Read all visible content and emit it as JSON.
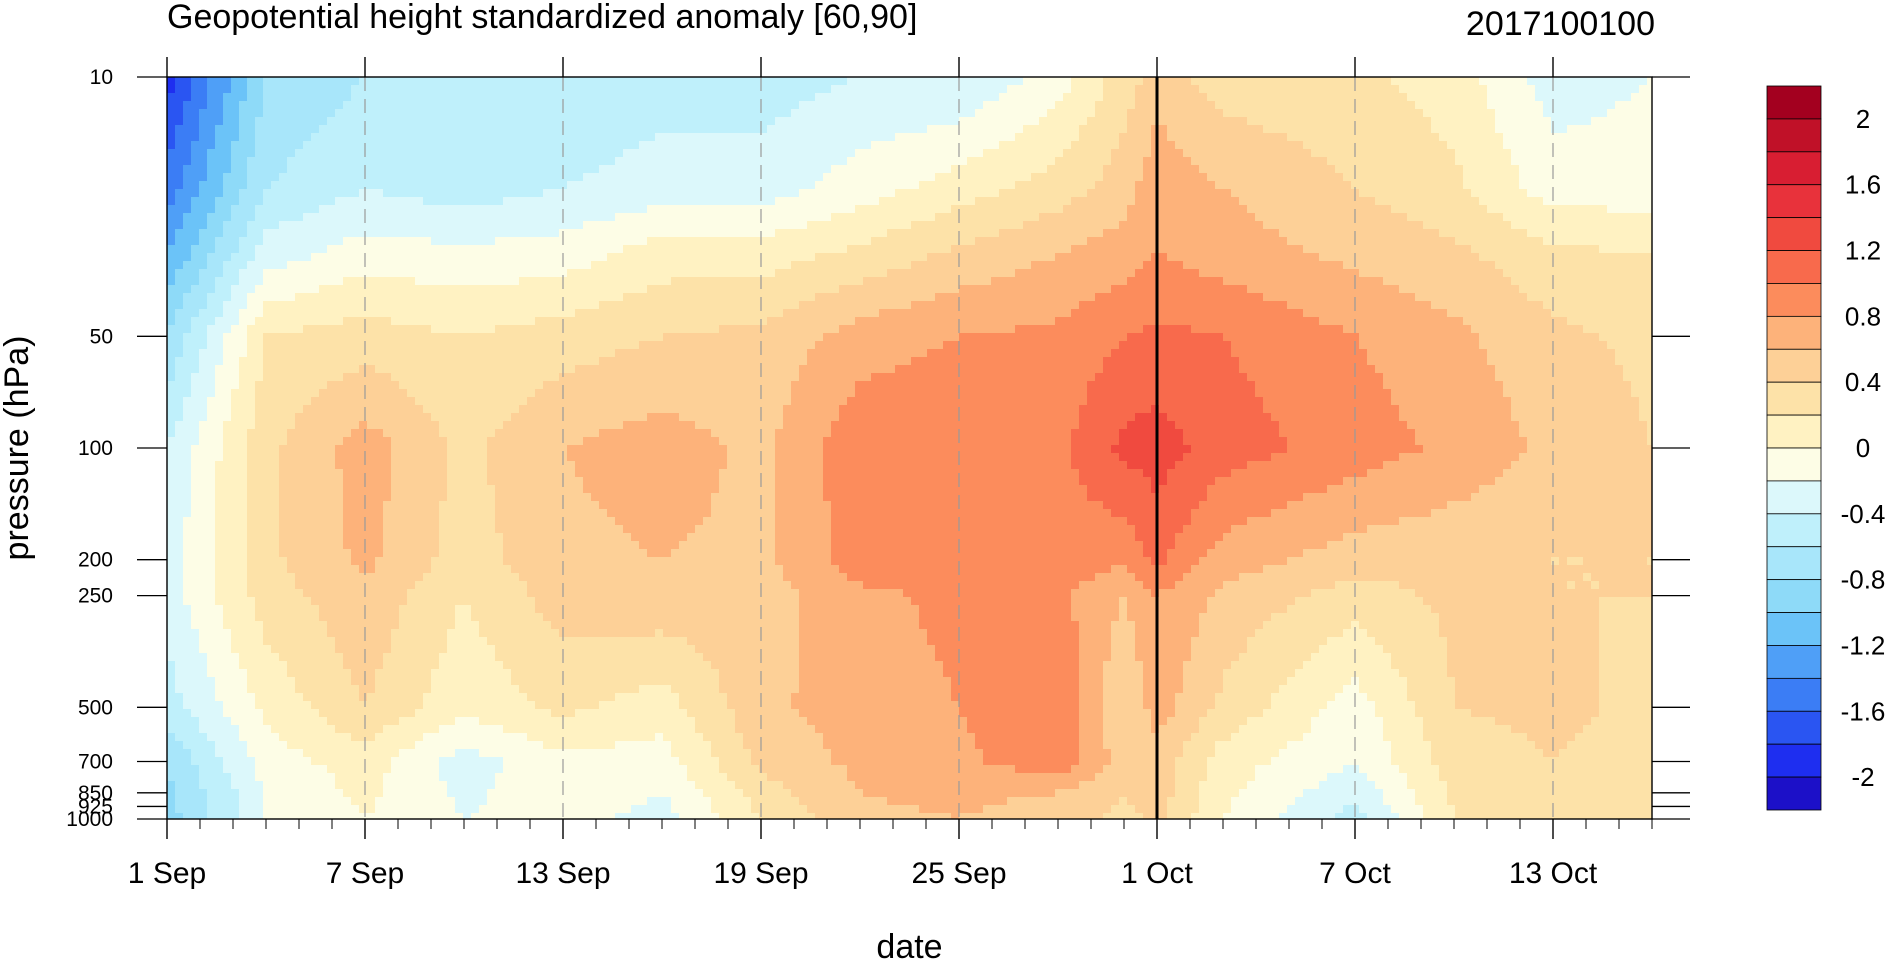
{
  "chart_data": {
    "type": "heatmap",
    "title": "Geopotential height standardized anomaly [60,90]",
    "date_stamp": "2017100100",
    "xlabel": "date",
    "ylabel": "pressure (hPa)",
    "x_tick_labels": [
      {
        "date": "2017-09-01",
        "label": "1 Sep"
      },
      {
        "date": "2017-09-07",
        "label": "7 Sep"
      },
      {
        "date": "2017-09-13",
        "label": "13 Sep"
      },
      {
        "date": "2017-09-19",
        "label": "19 Sep"
      },
      {
        "date": "2017-09-25",
        "label": "25 Sep"
      },
      {
        "date": "2017-10-01",
        "label": "1 Oct"
      },
      {
        "date": "2017-10-07",
        "label": "7 Oct"
      },
      {
        "date": "2017-10-13",
        "label": "13 Oct"
      }
    ],
    "xlim": [
      "2017-09-01",
      "2017-10-16"
    ],
    "minor_tick_days": 1,
    "vertical_marker_date": "2017-10-01",
    "y_scale": "log",
    "ylim": [
      1000,
      10
    ],
    "y_tick_labels": [
      {
        "value": 10,
        "label": "10"
      },
      {
        "value": 50,
        "label": "50"
      },
      {
        "value": 100,
        "label": "100"
      },
      {
        "value": 200,
        "label": "200"
      },
      {
        "value": 250,
        "label": "250"
      },
      {
        "value": 500,
        "label": "500"
      },
      {
        "value": 700,
        "label": "700"
      },
      {
        "value": 850,
        "label": "850"
      },
      {
        "value": 925,
        "label": "925"
      },
      {
        "value": 1000,
        "label": "1000"
      }
    ],
    "colorbar": {
      "levels": [
        -2.2,
        -2.0,
        -1.8,
        -1.6,
        -1.4,
        -1.2,
        -1.0,
        -0.8,
        -0.6,
        -0.4,
        -0.2,
        0,
        0.2,
        0.4,
        0.6,
        0.8,
        1.0,
        1.2,
        1.4,
        1.6,
        1.8,
        2.0,
        2.2
      ],
      "colors": [
        "#1c10c8",
        "#1e2ef0",
        "#2a55f2",
        "#3b7df5",
        "#4f9ff7",
        "#6bc3f8",
        "#8edaf8",
        "#a8e6fa",
        "#bff0fb",
        "#dcf8fb",
        "#fdfde6",
        "#fff2c2",
        "#fde2a8",
        "#fdd097",
        "#fdb27a",
        "#fc8c5c",
        "#f86a4c",
        "#f04a3f",
        "#e8323b",
        "#d81e32",
        "#c01128",
        "#a3001f"
      ],
      "labels": [
        "2",
        "1.6",
        "1.2",
        "0.8",
        "0.4",
        "0",
        "-0.4",
        "-0.8",
        "-1.2",
        "-1.6",
        "-2"
      ],
      "label_levels": [
        2.0,
        1.6,
        1.2,
        0.8,
        0.4,
        0.0,
        -0.4,
        -0.8,
        -1.2,
        -1.6,
        -2.0
      ]
    },
    "anomaly_grid": {
      "dates": [
        "2017-09-01",
        "2017-09-04",
        "2017-09-07",
        "2017-09-10",
        "2017-09-13",
        "2017-09-16",
        "2017-09-19",
        "2017-09-22",
        "2017-09-25",
        "2017-09-28",
        "2017-09-30",
        "2017-10-01",
        "2017-10-03",
        "2017-10-07",
        "2017-10-10",
        "2017-10-13",
        "2017-10-16"
      ],
      "pressure": [
        10,
        20,
        30,
        50,
        100,
        200,
        250,
        500,
        700,
        850,
        1000
      ],
      "values": [
        [
          -1.9,
          -0.8,
          -0.6,
          -0.6,
          -0.6,
          -0.5,
          -0.5,
          -0.4,
          -0.4,
          -0.1,
          0.3,
          0.5,
          0.3,
          0.25,
          0.1,
          -0.3,
          -0.2
        ],
        [
          -1.5,
          -0.6,
          -0.4,
          -0.5,
          -0.4,
          -0.3,
          -0.3,
          -0.1,
          0.1,
          0.3,
          0.5,
          0.75,
          0.6,
          0.4,
          0.25,
          -0.1,
          -0.1
        ],
        [
          -1.2,
          -0.3,
          -0.1,
          -0.15,
          -0.1,
          0.1,
          0.1,
          0.25,
          0.45,
          0.6,
          0.7,
          0.8,
          0.7,
          0.55,
          0.45,
          0.25,
          0.2
        ],
        [
          -0.8,
          0.2,
          0.3,
          0.2,
          0.3,
          0.4,
          0.45,
          0.7,
          0.8,
          0.85,
          1.0,
          1.05,
          1.0,
          0.8,
          0.65,
          0.45,
          0.35
        ],
        [
          -0.4,
          0.35,
          0.7,
          0.35,
          0.6,
          0.7,
          0.55,
          0.95,
          1.0,
          0.95,
          1.25,
          1.3,
          1.1,
          0.9,
          0.75,
          0.55,
          0.4
        ],
        [
          -0.3,
          0.35,
          0.65,
          0.3,
          0.55,
          0.6,
          0.55,
          0.9,
          0.95,
          0.9,
          0.85,
          1.05,
          0.7,
          0.5,
          0.45,
          0.4,
          0.4
        ],
        [
          -0.3,
          0.3,
          0.55,
          0.2,
          0.5,
          0.55,
          0.5,
          0.75,
          0.85,
          0.85,
          0.6,
          0.8,
          0.55,
          0.3,
          0.45,
          0.4,
          0.4
        ],
        [
          -0.5,
          0.05,
          0.4,
          0.05,
          0.25,
          0.1,
          0.55,
          0.7,
          0.8,
          1.0,
          0.4,
          0.7,
          0.35,
          -0.1,
          0.4,
          0.45,
          0.35
        ],
        [
          -0.8,
          -0.1,
          0.1,
          -0.3,
          -0.05,
          -0.1,
          0.45,
          0.65,
          0.75,
          0.95,
          0.5,
          0.5,
          0.1,
          -0.2,
          0.3,
          0.4,
          0.3
        ],
        [
          -0.85,
          -0.2,
          0.05,
          -0.25,
          -0.05,
          -0.2,
          0.3,
          0.6,
          0.65,
          0.6,
          0.4,
          0.5,
          0.05,
          -0.35,
          0.25,
          0.35,
          0.25
        ],
        [
          -0.9,
          -0.2,
          0.0,
          -0.2,
          -0.1,
          -0.3,
          0.2,
          0.55,
          0.6,
          0.5,
          0.35,
          0.45,
          0.0,
          -0.5,
          0.2,
          0.3,
          0.2
        ]
      ]
    },
    "legend_placement": "right",
    "grid": "dashed vertical lines at labelled dates"
  }
}
